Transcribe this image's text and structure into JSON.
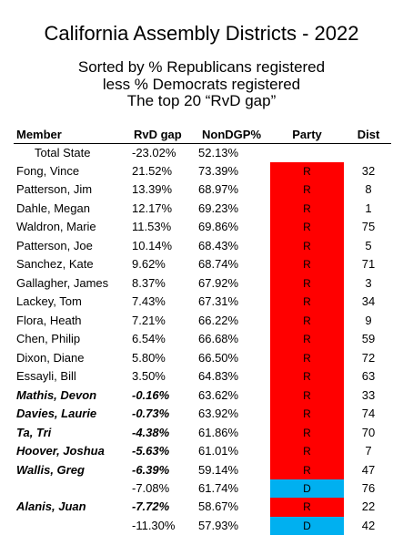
{
  "header": {
    "title": "California Assembly Districts - 2022",
    "subtitle": [
      "Sorted by % Republicans registered",
      "less % Democrats registered",
      "The top 20 “RvD gap”"
    ]
  },
  "table": {
    "columns": [
      "Member",
      "RvD gap",
      "NonDGP%",
      "Party",
      "Dist"
    ],
    "party_colors": {
      "R": "#ff0000",
      "D": "#00b0f0"
    },
    "total": {
      "member": "Total State",
      "gap": "-23.02%",
      "nondgp": "52.13%"
    },
    "rows": [
      {
        "member": "Fong, Vince",
        "gap": "21.52%",
        "nondgp": "73.39%",
        "party": "R",
        "dist": "32",
        "style": "normal"
      },
      {
        "member": "Patterson, Jim",
        "gap": "13.39%",
        "nondgp": "68.97%",
        "party": "R",
        "dist": "8",
        "style": "normal"
      },
      {
        "member": "Dahle, Megan",
        "gap": "12.17%",
        "nondgp": "69.23%",
        "party": "R",
        "dist": "1",
        "style": "normal"
      },
      {
        "member": "Waldron, Marie",
        "gap": "11.53%",
        "nondgp": "69.86%",
        "party": "R",
        "dist": "75",
        "style": "normal"
      },
      {
        "member": "Patterson, Joe",
        "gap": "10.14%",
        "nondgp": "68.43%",
        "party": "R",
        "dist": "5",
        "style": "normal"
      },
      {
        "member": "Sanchez, Kate",
        "gap": "9.62%",
        "nondgp": "68.74%",
        "party": "R",
        "dist": "71",
        "style": "normal"
      },
      {
        "member": "Gallagher, James",
        "gap": "8.37%",
        "nondgp": "67.92%",
        "party": "R",
        "dist": "3",
        "style": "normal"
      },
      {
        "member": "Lackey, Tom",
        "gap": "7.43%",
        "nondgp": "67.31%",
        "party": "R",
        "dist": "34",
        "style": "normal"
      },
      {
        "member": "Flora, Heath",
        "gap": "7.21%",
        "nondgp": "66.22%",
        "party": "R",
        "dist": "9",
        "style": "normal"
      },
      {
        "member": "Chen, Philip",
        "gap": "6.54%",
        "nondgp": "66.68%",
        "party": "R",
        "dist": "59",
        "style": "normal"
      },
      {
        "member": "Dixon, Diane",
        "gap": "5.80%",
        "nondgp": "66.50%",
        "party": "R",
        "dist": "72",
        "style": "normal"
      },
      {
        "member": "Essayli, Bill",
        "gap": "3.50%",
        "nondgp": "64.83%",
        "party": "R",
        "dist": "63",
        "style": "normal"
      },
      {
        "member": "Mathis, Devon",
        "gap": "-0.16%",
        "nondgp": "63.62%",
        "party": "R",
        "dist": "33",
        "style": "bold-italic"
      },
      {
        "member": "Davies, Laurie",
        "gap": "-0.73%",
        "nondgp": "63.92%",
        "party": "R",
        "dist": "74",
        "style": "bold-italic"
      },
      {
        "member": "Ta, Tri",
        "gap": "-4.38%",
        "nondgp": "61.86%",
        "party": "R",
        "dist": "70",
        "style": "bold-italic"
      },
      {
        "member": "Hoover, Joshua",
        "gap": "-5.63%",
        "nondgp": "61.01%",
        "party": "R",
        "dist": "7",
        "style": "bold-italic"
      },
      {
        "member": "Wallis, Greg",
        "gap": "-6.39%",
        "nondgp": "59.14%",
        "party": "R",
        "dist": "47",
        "style": "bold-italic"
      },
      {
        "member": null,
        "gap": "-7.08%",
        "nondgp": "61.74%",
        "party": "D",
        "dist": "76",
        "style": "normal"
      },
      {
        "member": "Alanis, Juan",
        "gap": "-7.72%",
        "nondgp": "58.67%",
        "party": "R",
        "dist": "22",
        "style": "bold-italic"
      },
      {
        "member": null,
        "gap": "-11.30%",
        "nondgp": "57.93%",
        "party": "D",
        "dist": "42",
        "style": "normal"
      }
    ]
  }
}
